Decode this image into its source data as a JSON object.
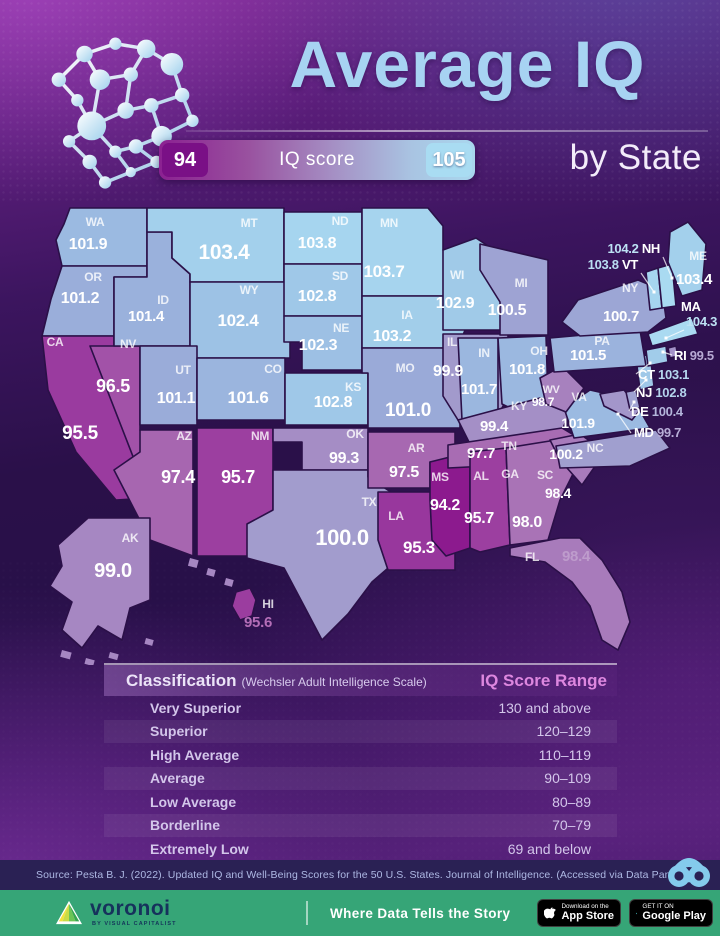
{
  "header": {
    "title": "Average IQ",
    "subtitle": "by State",
    "legend": {
      "min": "94",
      "max": "105",
      "label": "IQ score"
    }
  },
  "colors": {
    "title_blue": "#a7d3f2",
    "scale_min": "#8a148b",
    "scale_max": "#aee0f4",
    "footer_green": "#36a577",
    "source_band_navy": "#2a2154"
  },
  "chart_data": [
    {
      "type": "choropleth",
      "title": "Average IQ",
      "subtitle": "by State",
      "legend": {
        "label": "IQ score",
        "min": 94,
        "max": 105
      },
      "states": [
        {
          "abbr": "WA",
          "value": "101.9"
        },
        {
          "abbr": "OR",
          "value": "101.2"
        },
        {
          "abbr": "CA",
          "value": "95.5"
        },
        {
          "abbr": "NV",
          "value": "96.5"
        },
        {
          "abbr": "ID",
          "value": "101.4"
        },
        {
          "abbr": "MT",
          "value": "103.4"
        },
        {
          "abbr": "WY",
          "value": "102.4"
        },
        {
          "abbr": "UT",
          "value": "101.1"
        },
        {
          "abbr": "CO",
          "value": "101.6"
        },
        {
          "abbr": "AZ",
          "value": "97.4"
        },
        {
          "abbr": "NM",
          "value": "95.7"
        },
        {
          "abbr": "ND",
          "value": "103.8"
        },
        {
          "abbr": "SD",
          "value": "102.8"
        },
        {
          "abbr": "NE",
          "value": "102.3"
        },
        {
          "abbr": "KS",
          "value": "102.8"
        },
        {
          "abbr": "OK",
          "value": "99.3"
        },
        {
          "abbr": "TX",
          "value": "100.0"
        },
        {
          "abbr": "MN",
          "value": "103.7"
        },
        {
          "abbr": "IA",
          "value": "103.2"
        },
        {
          "abbr": "MO",
          "value": "101.0"
        },
        {
          "abbr": "AR",
          "value": "97.5"
        },
        {
          "abbr": "LA",
          "value": "95.3"
        },
        {
          "abbr": "WI",
          "value": "102.9"
        },
        {
          "abbr": "IL",
          "value": "99.9"
        },
        {
          "abbr": "MS",
          "value": "94.2"
        },
        {
          "abbr": "MI",
          "value": "100.5"
        },
        {
          "abbr": "IN",
          "value": "101.7"
        },
        {
          "abbr": "OH",
          "value": "101.8"
        },
        {
          "abbr": "KY",
          "value": "99.4"
        },
        {
          "abbr": "TN",
          "value": "97.7"
        },
        {
          "abbr": "AL",
          "value": "95.7"
        },
        {
          "abbr": "GA",
          "value": "98.0"
        },
        {
          "abbr": "FL",
          "value": "98.4"
        },
        {
          "abbr": "SC",
          "value": "98.4"
        },
        {
          "abbr": "NC",
          "value": "100.2"
        },
        {
          "abbr": "VA",
          "value": "101.9"
        },
        {
          "abbr": "WV",
          "value": "98.7"
        },
        {
          "abbr": "MD",
          "value": "99.7"
        },
        {
          "abbr": "DE",
          "value": "100.4"
        },
        {
          "abbr": "NJ",
          "value": "102.8"
        },
        {
          "abbr": "PA",
          "value": "101.5"
        },
        {
          "abbr": "NY",
          "value": "100.7"
        },
        {
          "abbr": "CT",
          "value": "103.1"
        },
        {
          "abbr": "RI",
          "value": "99.5"
        },
        {
          "abbr": "MA",
          "value": "104.3"
        },
        {
          "abbr": "VT",
          "value": "103.8"
        },
        {
          "abbr": "NH",
          "value": "104.2"
        },
        {
          "abbr": "ME",
          "value": "103.4"
        },
        {
          "abbr": "AK",
          "value": "99.0"
        },
        {
          "abbr": "HI",
          "value": "95.6"
        }
      ]
    },
    {
      "type": "table",
      "title": "Classification (Wechsler Adult Intelligence Scale)",
      "columns": [
        "Classification",
        "IQ Score Range"
      ],
      "rows": [
        [
          "Very Superior",
          "130 and above"
        ],
        [
          "Superior",
          "120–129"
        ],
        [
          "High Average",
          "110–119"
        ],
        [
          "Average",
          "90–109"
        ],
        [
          "Low Average",
          "80–89"
        ],
        [
          "Borderline",
          "70–79"
        ],
        [
          "Extremely Low",
          "69 and below"
        ]
      ]
    }
  ],
  "table": {
    "header_main": "Classification",
    "header_note": "(Wechsler Adult Intelligence Scale)",
    "header_range": "IQ Score Range"
  },
  "source": "Source: Pesta B. J. (2022). Updated IQ and Well-Being Scores for the 50 U.S. States. Journal of Intelligence. (Accessed via Data Pandas).",
  "footer": {
    "brand": "voronoi",
    "brand_sub": "BY VISUAL CAPITALIST",
    "tagline": "Where Data Tells the Story",
    "badges": [
      {
        "id": "app-store",
        "line1": "Download on the",
        "line2": "App Store"
      },
      {
        "id": "google-play",
        "line1": "GET IT ON",
        "line2": "Google Play"
      }
    ]
  }
}
